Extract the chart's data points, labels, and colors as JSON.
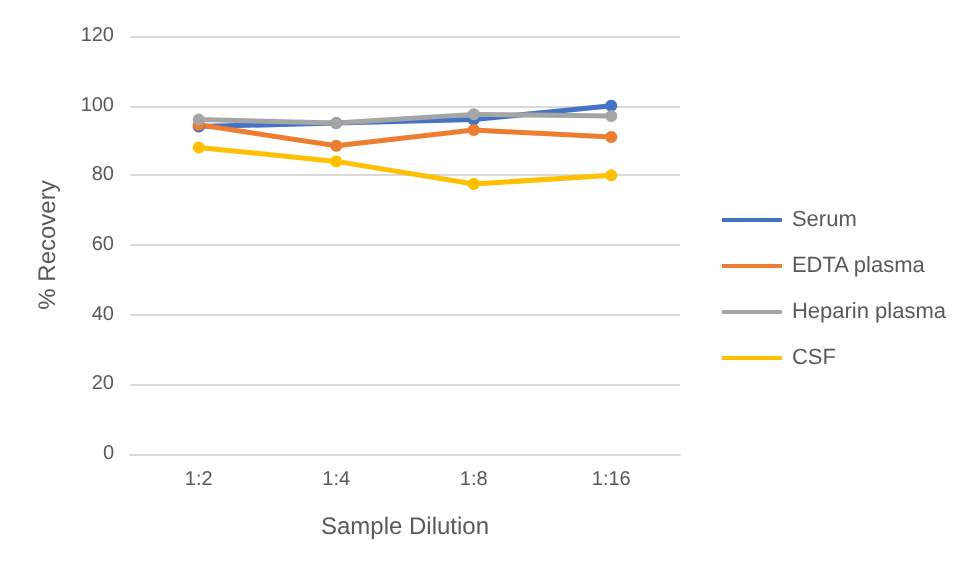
{
  "chart_data": {
    "type": "line",
    "xlabel": "Sample Dilution",
    "ylabel": "% Recovery",
    "categories": [
      "1:2",
      "1:4",
      "1:8",
      "1:16"
    ],
    "series": [
      {
        "name": "Serum",
        "color": "#4472c4",
        "values": [
          94,
          95,
          96,
          100
        ]
      },
      {
        "name": "EDTA plasma",
        "color": "#ed7d31",
        "values": [
          94.5,
          88.5,
          93,
          91
        ]
      },
      {
        "name": "Heparin plasma",
        "color": "#a5a5a5",
        "values": [
          96,
          95,
          97.5,
          97
        ]
      },
      {
        "name": "CSF",
        "color": "#ffc000",
        "values": [
          88,
          84,
          77.5,
          80
        ]
      }
    ],
    "ylim": [
      0,
      120
    ],
    "yticks": [
      0,
      20,
      40,
      60,
      80,
      100,
      120
    ],
    "grid": "y",
    "legend": "right",
    "marker": "circle"
  }
}
